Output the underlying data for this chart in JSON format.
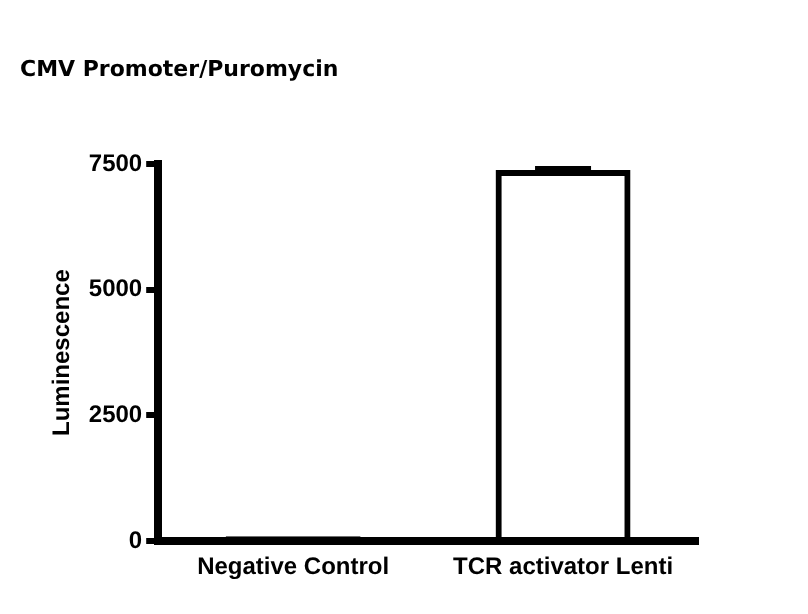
{
  "chart_data": {
    "type": "bar",
    "title": "CMV Promoter/Puromycin",
    "ylabel": "Luminescence",
    "categories": [
      "Negative Control",
      "TCR activator Lenti"
    ],
    "values": [
      100,
      7380
    ],
    "errors": [
      null,
      40
    ],
    "color": "#000000",
    "ylim": [
      0,
      7500
    ],
    "yticks": [
      0,
      2500,
      5000,
      7500
    ],
    "grid": false,
    "legend": false
  }
}
